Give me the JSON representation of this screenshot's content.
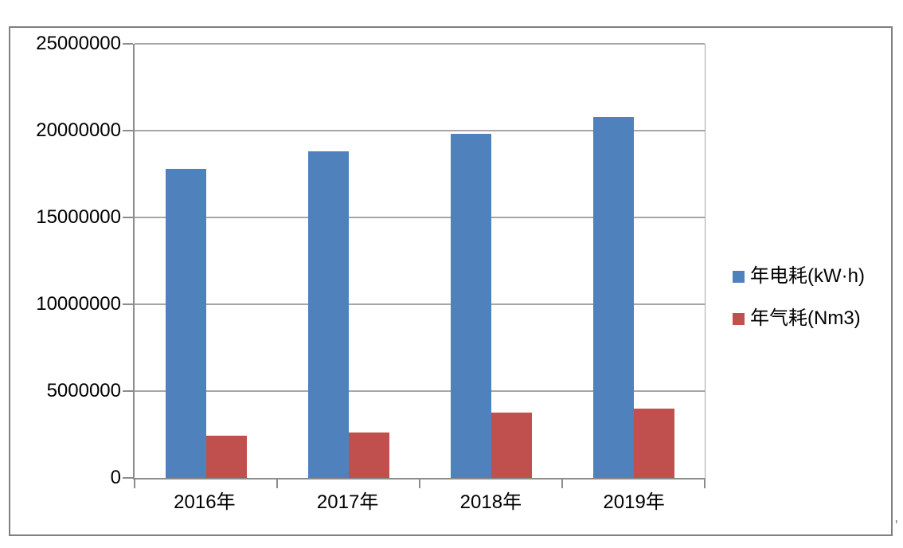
{
  "chart_data": {
    "type": "bar",
    "title": "",
    "xlabel": "",
    "ylabel": "",
    "categories": [
      "2016年",
      "2017年",
      "2018年",
      "2019年"
    ],
    "series": [
      {
        "name": "年电耗(kW·h)",
        "color": "#4F81BD",
        "values": [
          17800000,
          18800000,
          19800000,
          20800000
        ]
      },
      {
        "name": "年气耗(Nm3)",
        "color": "#C0504D",
        "values": [
          2450000,
          2600000,
          3750000,
          4000000
        ]
      }
    ],
    "ylim": [
      0,
      25000000
    ],
    "ytick_interval": 5000000,
    "yticks": [
      "25000000",
      "20000000",
      "15000000",
      "10000000",
      "5000000",
      "0"
    ],
    "grid": true,
    "legend_position": "right-middle"
  },
  "style_colors": {
    "grid": "#A6A6A6",
    "axis": "#8C8C8C",
    "frame": "#808080",
    "text": "#000000"
  },
  "stray_mark": "'"
}
